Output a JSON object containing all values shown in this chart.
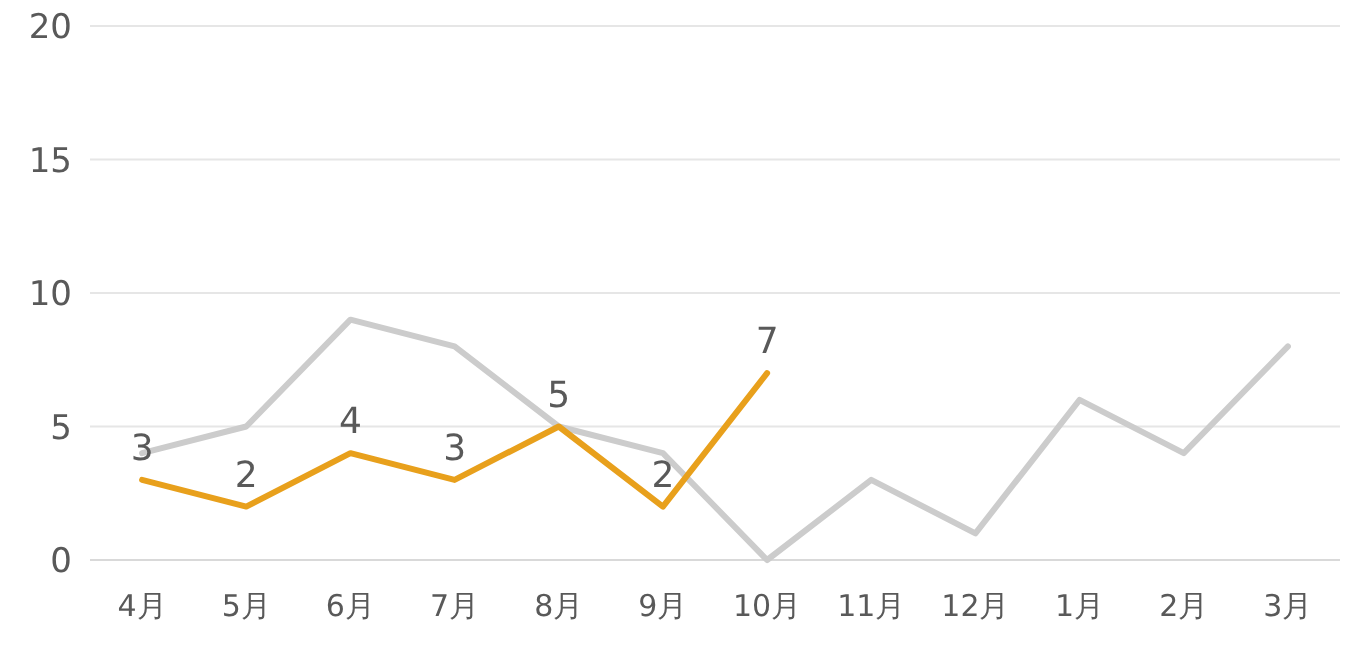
{
  "chart_data": {
    "type": "line",
    "categories": [
      "4月",
      "5月",
      "6月",
      "7月",
      "8月",
      "9月",
      "10月",
      "11月",
      "12月",
      "1月",
      "2月",
      "3月"
    ],
    "series": [
      {
        "color": "#cccccc",
        "values": [
          4,
          5,
          9,
          8,
          5,
          4,
          0,
          3,
          1,
          6,
          4,
          8
        ]
      },
      {
        "color": "#e8a01c",
        "values": [
          3,
          2,
          4,
          3,
          5,
          2,
          7,
          null,
          null,
          null,
          null,
          null
        ],
        "value_labels": [
          "3",
          "2",
          "4",
          "3",
          "5",
          "2",
          "7",
          null,
          null,
          null,
          null,
          null
        ]
      }
    ],
    "ylim": [
      0,
      20
    ],
    "yticks": [
      0,
      5,
      10,
      15,
      20
    ],
    "grid": "y",
    "marker": "none",
    "line_style": "solid"
  }
}
